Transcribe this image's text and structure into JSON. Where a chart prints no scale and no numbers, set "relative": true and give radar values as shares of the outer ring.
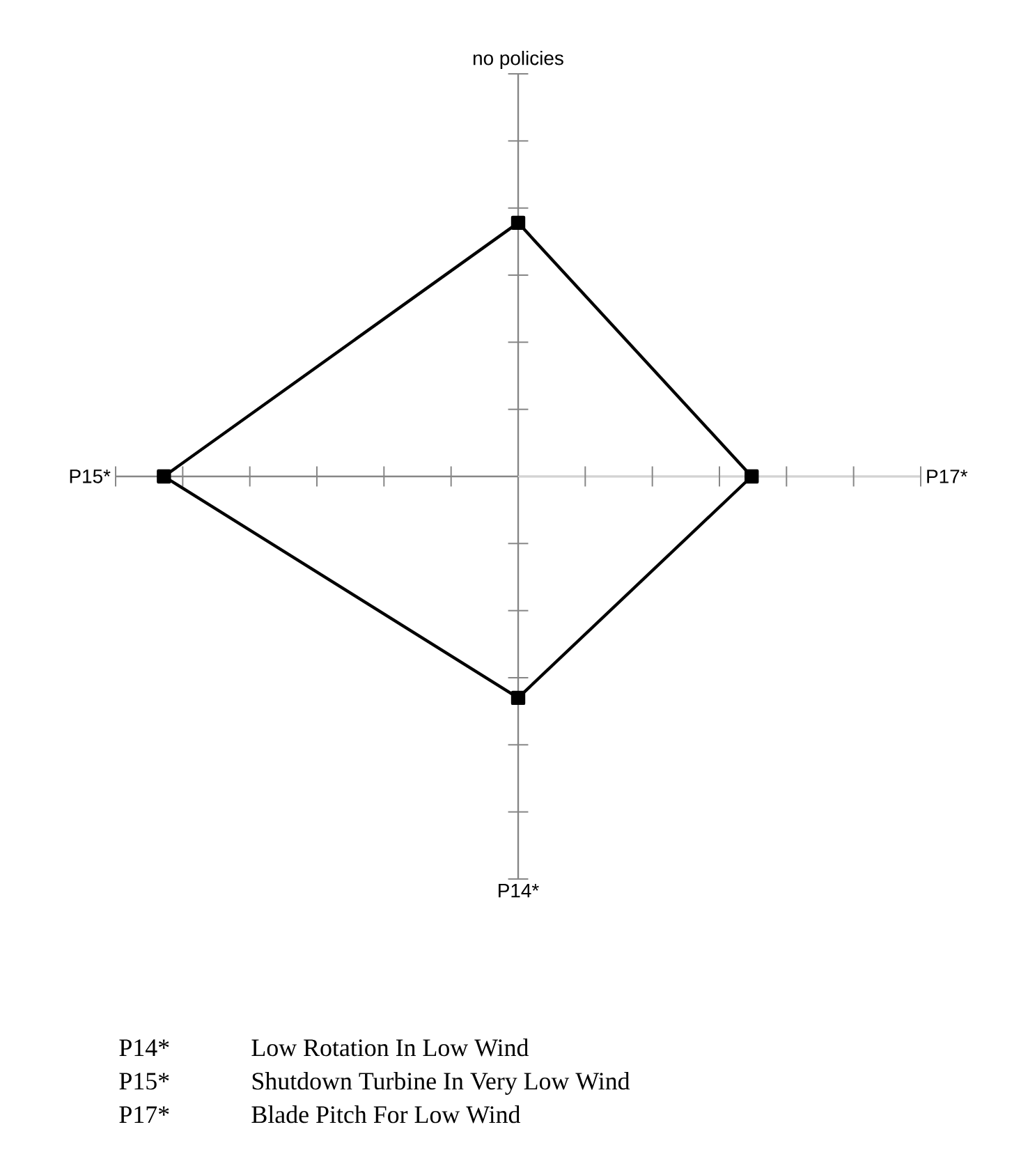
{
  "chart_data": {
    "type": "radar",
    "relative": true,
    "marker": "square",
    "categories": [
      "no policies",
      "P17*",
      "P14*",
      "P15*"
    ],
    "series": [
      {
        "color": "#000000",
        "values": [
          0.63,
          0.58,
          0.55,
          0.88
        ]
      }
    ],
    "annotations": [
      "P14*",
      "Low Rotation In Low Wind",
      "P15*",
      "Shutdown Turbine In Very Low Wind",
      "P17*",
      "Blade Pitch For Low Wind"
    ]
  }
}
